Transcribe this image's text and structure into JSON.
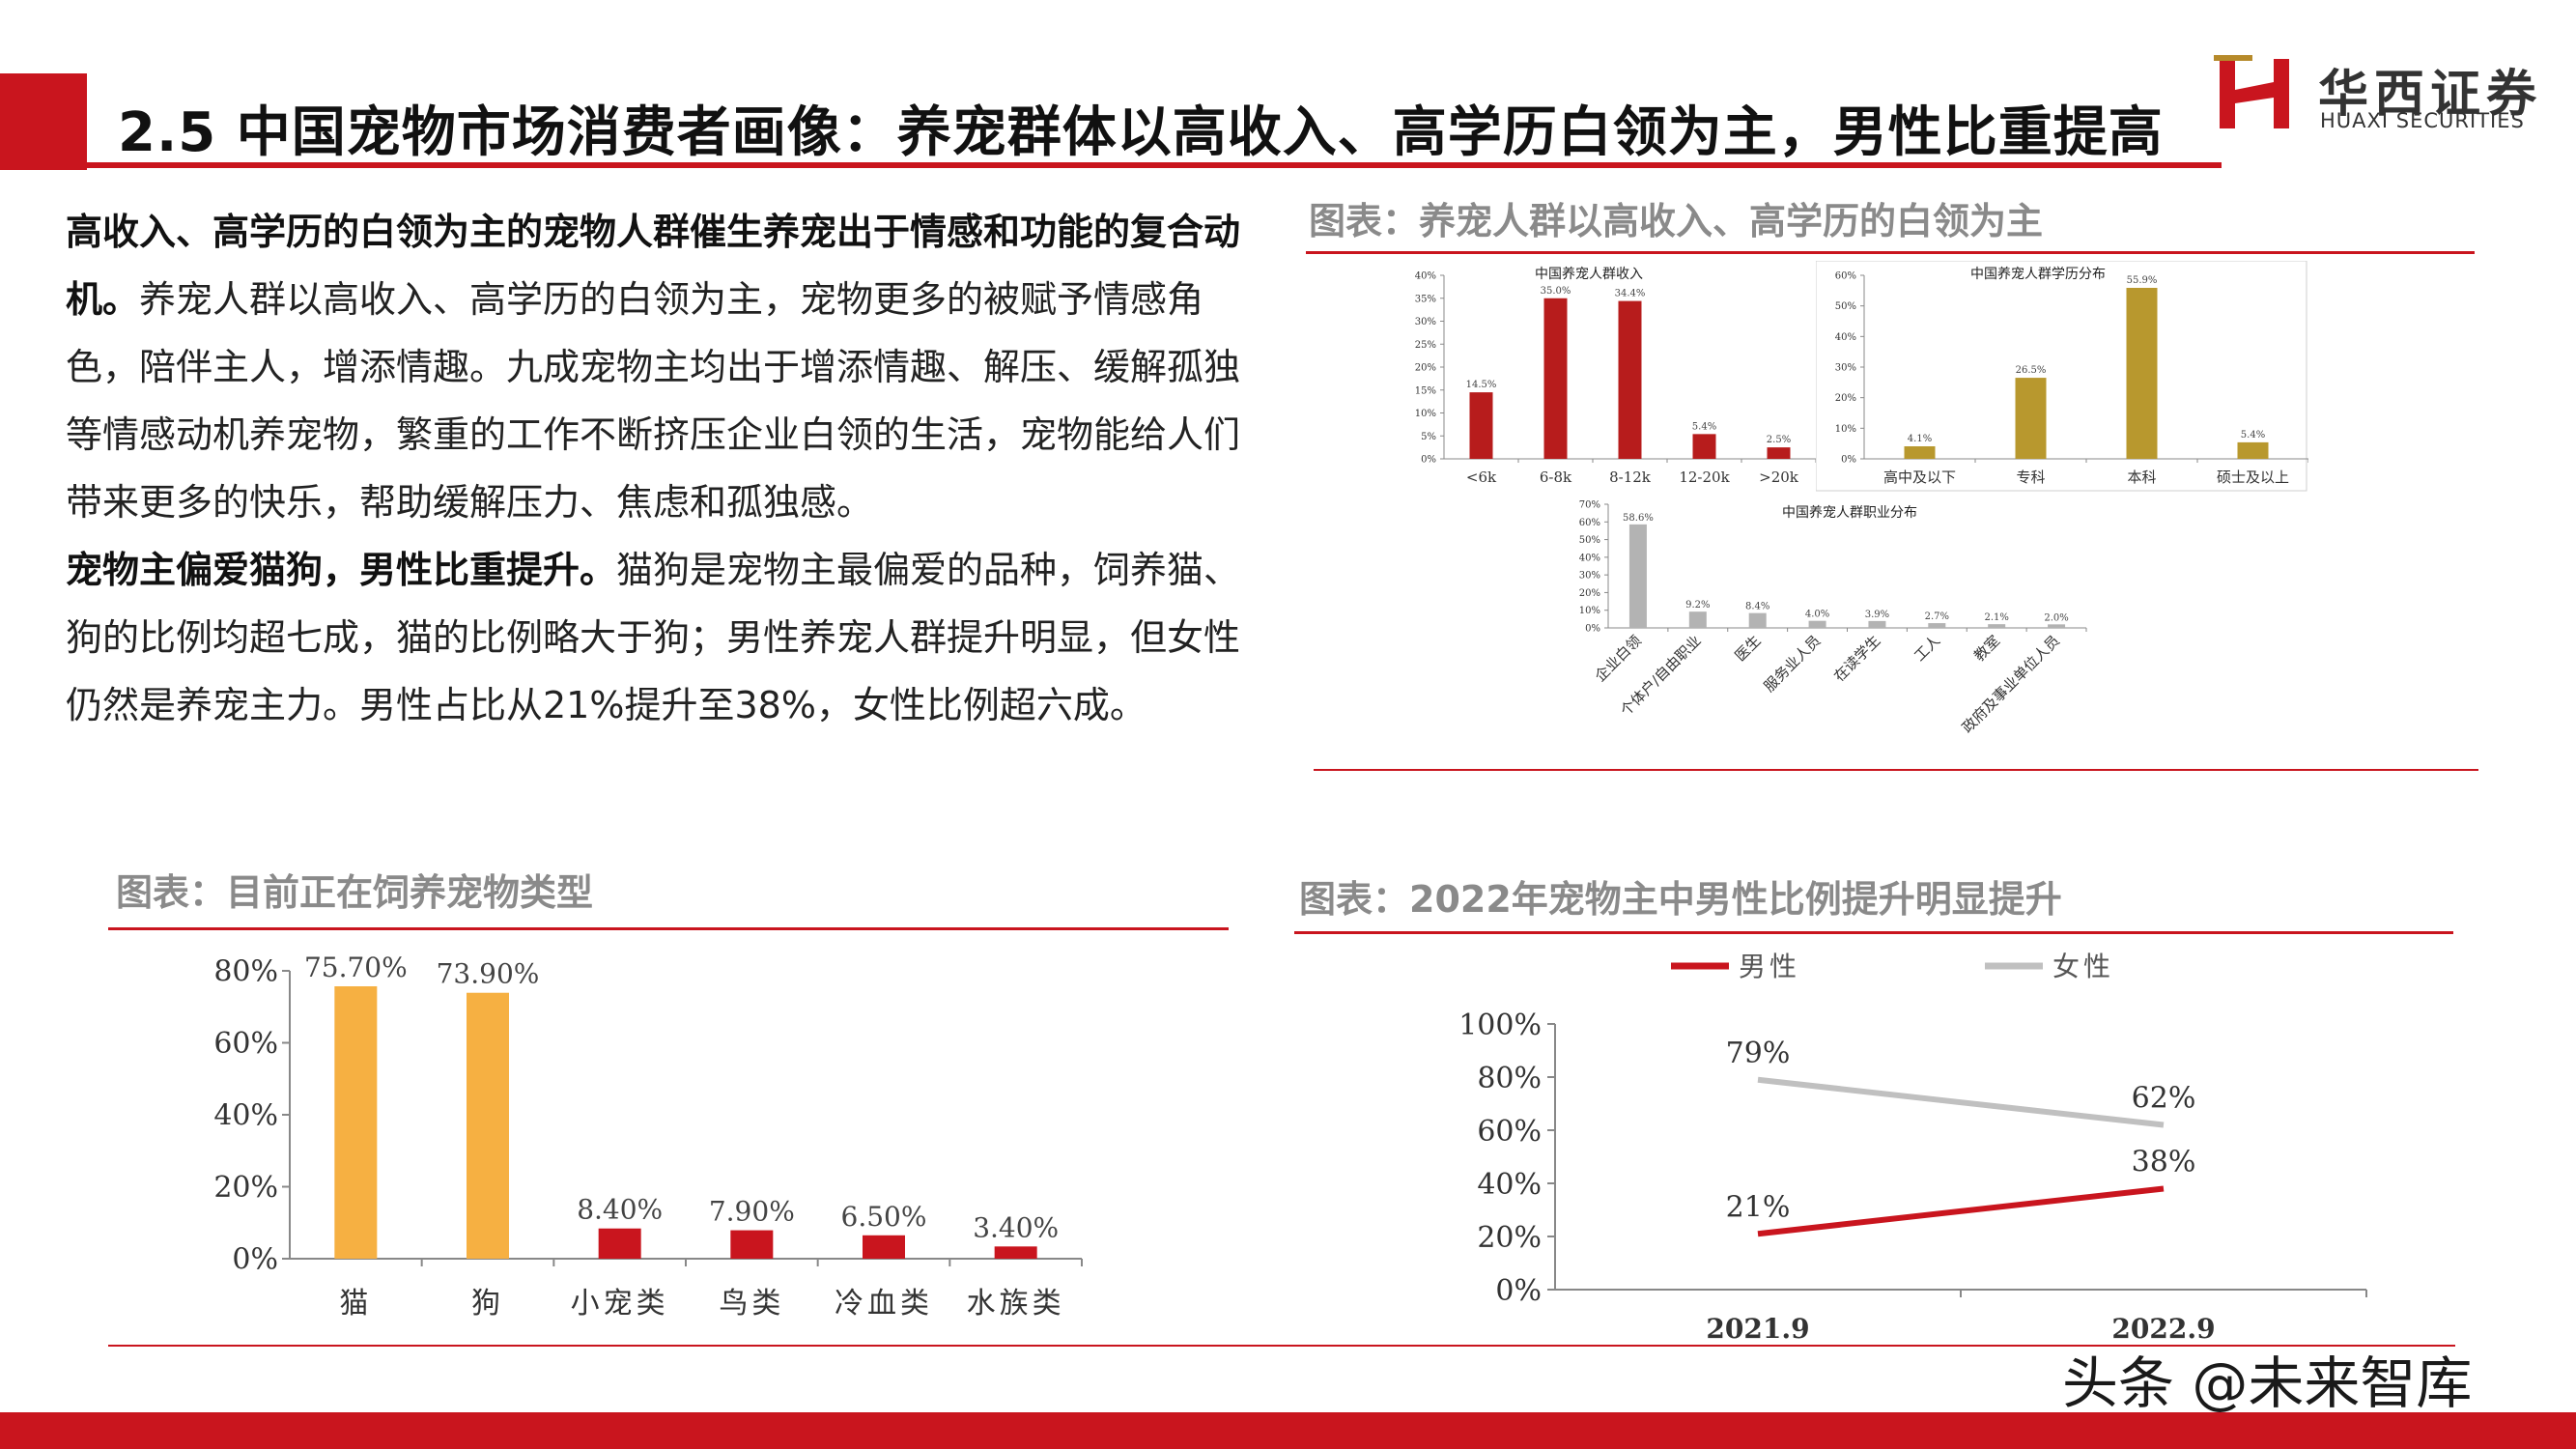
{
  "header": {
    "title": "2.5 中国宠物市场消费者画像：养宠群体以高收入、高学历白领为主，男性比重提高",
    "logo_cn": "华西证券",
    "logo_en": "HUAXI SECURITIES"
  },
  "text": {
    "p1_bold": "高收入、高学历的白领为主的宠物人群催生养宠出于情感和功能的复合动机。",
    "p1_rest": "养宠人群以高收入、高学历的白领为主，宠物更多的被赋予情感角色，陪伴主人，增添情趣。九成宠物主均出于增添情趣、解压、缓解孤独等情感动机养宠物，繁重的工作不断挤压企业白领的生活，宠物能给人们带来更多的快乐，帮助缓解压力、焦虑和孤独感。",
    "p2_bold": "宠物主偏爱猫狗，男性比重提升。",
    "p2_rest": "猫狗是宠物主最偏爱的品种，饲养猫、狗的比例均超七成，猫的比例略大于狗；男性养宠人群提升明显，但女性仍然是养宠主力。男性占比从21%提升至38%，女性比例超六成。"
  },
  "sections": {
    "top_right": "图表：养宠人群以高收入、高学历的白领为主",
    "bottom_left": "图表：目前正在饲养宠物类型",
    "bottom_right": "图表：2022年宠物主中男性比例提升明显提升"
  },
  "watermark": "头条 @未来智库",
  "colors": {
    "accent": "#c9151e",
    "gold": "#b8982e",
    "orange": "#f6b042",
    "gray": "#b3b3b3",
    "barred": "#b71c1c"
  },
  "chart_data": [
    {
      "id": "income",
      "type": "bar",
      "title": "中国养宠人群收入",
      "categories": [
        "<6k",
        "6-8k",
        "8-12k",
        "12-20k",
        ">20k"
      ],
      "values": [
        14.5,
        35.0,
        34.4,
        5.4,
        2.5
      ],
      "value_labels": [
        "14.5%",
        "35.0%",
        "34.4%",
        "5.4%",
        "2.5%"
      ],
      "yticks": [
        "0%",
        "5%",
        "10%",
        "15%",
        "20%",
        "25%",
        "30%",
        "35%",
        "40%"
      ],
      "ylim": [
        0,
        40
      ]
    },
    {
      "id": "education",
      "type": "bar",
      "title": "中国养宠人群学历分布",
      "categories": [
        "高中及以下",
        "专科",
        "本科",
        "硕士及以上"
      ],
      "values": [
        4.1,
        26.5,
        55.9,
        5.4
      ],
      "value_labels": [
        "4.1%",
        "26.5%",
        "55.9%",
        "5.4%"
      ],
      "yticks": [
        "0%",
        "10%",
        "20%",
        "30%",
        "40%",
        "50%",
        "60%"
      ],
      "ylim": [
        0,
        60
      ]
    },
    {
      "id": "occupation",
      "type": "bar",
      "title": "中国养宠人群职业分布",
      "categories": [
        "企业白领",
        "个体户/自由职业",
        "医生",
        "服务业人员",
        "在读学生",
        "工人",
        "教室",
        "政府及事业单位人员"
      ],
      "values": [
        58.6,
        9.2,
        8.4,
        4.0,
        3.9,
        2.7,
        2.1,
        2.0
      ],
      "value_labels": [
        "58.6%",
        "9.2%",
        "8.4%",
        "4.0%",
        "3.9%",
        "2.7%",
        "2.1%",
        "2.0%"
      ],
      "yticks": [
        "0%",
        "10%",
        "20%",
        "30%",
        "40%",
        "50%",
        "60%",
        "70%"
      ],
      "ylim": [
        0,
        70
      ]
    },
    {
      "id": "pet_types",
      "type": "bar",
      "categories": [
        "猫",
        "狗",
        "小宠类",
        "鸟类",
        "冷血类",
        "水族类"
      ],
      "values": [
        75.7,
        73.9,
        8.4,
        7.9,
        6.5,
        3.4
      ],
      "value_labels": [
        "75.70%",
        "73.90%",
        "8.40%",
        "7.90%",
        "6.50%",
        "3.40%"
      ],
      "yticks": [
        "0%",
        "20%",
        "40%",
        "60%",
        "80%"
      ],
      "ylim": [
        0,
        80
      ]
    },
    {
      "id": "gender",
      "type": "line",
      "x": [
        "2021.9",
        "2022.9"
      ],
      "series": [
        {
          "name": "男性",
          "values": [
            21,
            38
          ],
          "value_labels": [
            "21%",
            "38%"
          ]
        },
        {
          "name": "女性",
          "values": [
            79,
            62
          ],
          "value_labels": [
            "79%",
            "62%"
          ]
        }
      ],
      "yticks": [
        "0%",
        "20%",
        "40%",
        "60%",
        "80%",
        "100%"
      ],
      "ylim": [
        0,
        100
      ],
      "legend": "top"
    }
  ]
}
